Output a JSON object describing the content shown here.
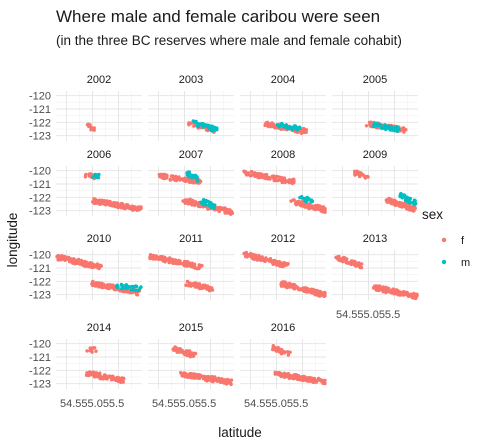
{
  "chart_data": {
    "type": "scatter",
    "title": "Where male and female caribou were seen",
    "subtitle": "(in the three BC reserves where male and female cohabit)",
    "xlabel": "latitude",
    "ylabel": "longitude",
    "x_tick_labels": [
      "54.5",
      "55.0",
      "55.5"
    ],
    "y_tick_labels": [
      "-120",
      "-121",
      "-122",
      "-123"
    ],
    "x_ticks": [
      54.5,
      55.0,
      55.5
    ],
    "y_ticks": [
      -120,
      -121,
      -122,
      -123
    ],
    "xlim": [
      54.3,
      55.95
    ],
    "ylim": [
      -123.4,
      -119.65
    ],
    "grid": true,
    "legend_position": "right",
    "legend": {
      "title": "sex",
      "entries": [
        {
          "label": "f",
          "color": "#F8766D"
        },
        {
          "label": "m",
          "color": "#00BFC4"
        }
      ]
    },
    "panels": [
      {
        "year": "2002",
        "clusters": [
          {
            "sex": "f",
            "x": [
              54.9,
              55.02
            ],
            "y": [
              -122.15,
              -122.55
            ]
          }
        ]
      },
      {
        "year": "2003",
        "clusters": [
          {
            "sex": "f",
            "x": [
              55.1,
              55.6
            ],
            "y": [
              -122.0,
              -122.7
            ]
          },
          {
            "sex": "m",
            "x": [
              55.2,
              55.6
            ],
            "y": [
              -121.95,
              -122.65
            ]
          }
        ]
      },
      {
        "year": "2004",
        "clusters": [
          {
            "sex": "f",
            "x": [
              54.8,
              55.55
            ],
            "y": [
              -122.0,
              -122.8
            ]
          },
          {
            "sex": "m",
            "x": [
              55.05,
              55.45
            ],
            "y": [
              -122.1,
              -122.6
            ]
          }
        ]
      },
      {
        "year": "2005",
        "clusters": [
          {
            "sex": "f",
            "x": [
              55.0,
              55.7
            ],
            "y": [
              -122.0,
              -122.7
            ]
          },
          {
            "sex": "m",
            "x": [
              55.1,
              55.6
            ],
            "y": [
              -122.1,
              -122.6
            ]
          }
        ]
      },
      {
        "year": "2006",
        "clusters": [
          {
            "sex": "f",
            "x": [
              54.85,
              55.1
            ],
            "y": [
              -120.3,
              -120.55
            ]
          },
          {
            "sex": "f",
            "x": [
              55.0,
              55.95
            ],
            "y": [
              -122.1,
              -123.05
            ]
          },
          {
            "sex": "m",
            "x": [
              55.05,
              55.1
            ],
            "y": [
              -120.35,
              -120.5
            ]
          }
        ]
      },
      {
        "year": "2007",
        "clusters": [
          {
            "sex": "f",
            "x": [
              54.5,
              55.3
            ],
            "y": [
              -120.3,
              -120.9
            ]
          },
          {
            "sex": "f",
            "x": [
              55.0,
              55.95
            ],
            "y": [
              -122.05,
              -123.35
            ]
          },
          {
            "sex": "m",
            "x": [
              55.05,
              55.25
            ],
            "y": [
              -120.1,
              -120.7
            ]
          },
          {
            "sex": "m",
            "x": [
              55.35,
              55.6
            ],
            "y": [
              -122.2,
              -122.9
            ]
          }
        ]
      },
      {
        "year": "2008",
        "clusters": [
          {
            "sex": "f",
            "x": [
              54.35,
              55.35
            ],
            "y": [
              -120.0,
              -121.0
            ]
          },
          {
            "sex": "f",
            "x": [
              55.3,
              55.95
            ],
            "y": [
              -122.2,
              -123.1
            ]
          },
          {
            "sex": "m",
            "x": [
              55.45,
              55.7
            ],
            "y": [
              -121.85,
              -122.4
            ]
          }
        ]
      },
      {
        "year": "2009",
        "clusters": [
          {
            "sex": "f",
            "x": [
              54.7,
              55.0
            ],
            "y": [
              -120.05,
              -120.55
            ]
          },
          {
            "sex": "f",
            "x": [
              55.35,
              55.9
            ],
            "y": [
              -122.05,
              -123.05
            ]
          },
          {
            "sex": "m",
            "x": [
              55.6,
              55.9
            ],
            "y": [
              -121.75,
              -122.55
            ]
          }
        ]
      },
      {
        "year": "2010",
        "clusters": [
          {
            "sex": "f",
            "x": [
              54.3,
              55.15
            ],
            "y": [
              -120.0,
              -121.1
            ]
          },
          {
            "sex": "f",
            "x": [
              55.0,
              55.9
            ],
            "y": [
              -122.0,
              -123.0
            ]
          },
          {
            "sex": "m",
            "x": [
              55.45,
              55.95
            ],
            "y": [
              -122.25,
              -122.65
            ]
          }
        ]
      },
      {
        "year": "2011",
        "clusters": [
          {
            "sex": "f",
            "x": [
              54.35,
              55.3
            ],
            "y": [
              -119.95,
              -121.1
            ]
          },
          {
            "sex": "f",
            "x": [
              55.05,
              55.55
            ],
            "y": [
              -122.05,
              -122.7
            ]
          }
        ]
      },
      {
        "year": "2012",
        "clusters": [
          {
            "sex": "f",
            "x": [
              54.4,
              55.2
            ],
            "y": [
              -119.8,
              -121.0
            ]
          },
          {
            "sex": "f",
            "x": [
              55.1,
              55.95
            ],
            "y": [
              -122.0,
              -123.2
            ]
          }
        ]
      },
      {
        "year": "2013",
        "clusters": [
          {
            "sex": "f",
            "x": [
              54.4,
              54.85
            ],
            "y": [
              -120.1,
              -120.95
            ]
          },
          {
            "sex": "f",
            "x": [
              55.1,
              55.95
            ],
            "y": [
              -122.3,
              -123.3
            ]
          }
        ]
      },
      {
        "year": "2014",
        "clusters": [
          {
            "sex": "f",
            "x": [
              54.9,
              55.1
            ],
            "y": [
              -120.35,
              -120.6
            ]
          },
          {
            "sex": "f",
            "x": [
              54.9,
              55.6
            ],
            "y": [
              -122.1,
              -122.9
            ]
          }
        ]
      },
      {
        "year": "2015",
        "clusters": [
          {
            "sex": "f",
            "x": [
              54.75,
              55.2
            ],
            "y": [
              -120.2,
              -121.0
            ]
          },
          {
            "sex": "f",
            "x": [
              54.9,
              55.9
            ],
            "y": [
              -122.1,
              -123.05
            ]
          }
        ]
      },
      {
        "year": "2016",
        "clusters": [
          {
            "sex": "f",
            "x": [
              54.95,
              55.25
            ],
            "y": [
              -120.2,
              -120.9
            ]
          },
          {
            "sex": "f",
            "x": [
              55.0,
              55.95
            ],
            "y": [
              -122.1,
              -123.05
            ]
          }
        ]
      }
    ]
  }
}
